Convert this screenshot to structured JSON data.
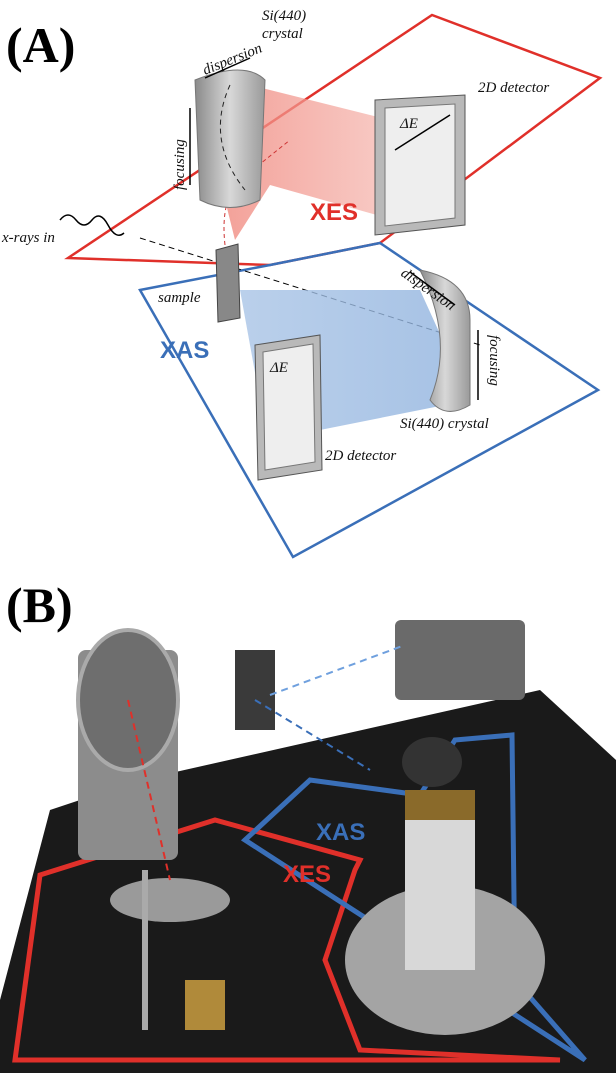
{
  "panel_a": {
    "label": "(A)",
    "xes": {
      "crystal_line1": "Si(440)",
      "crystal_line2": "crystal",
      "dispersion": "dispersion",
      "focusing": "focusing",
      "detector": "2D detector",
      "delta_e": "ΔE",
      "name": "XES"
    },
    "incoming": "x-rays in",
    "sample": "sample",
    "xas": {
      "name": "XAS",
      "dispersion": "dispersion",
      "focusing": "focusing",
      "delta_e": "ΔE",
      "crystal": "Si(440) crystal",
      "detector": "2D detector"
    }
  },
  "panel_b": {
    "label": "(B)",
    "xas": "XAS",
    "xes": "XES"
  }
}
